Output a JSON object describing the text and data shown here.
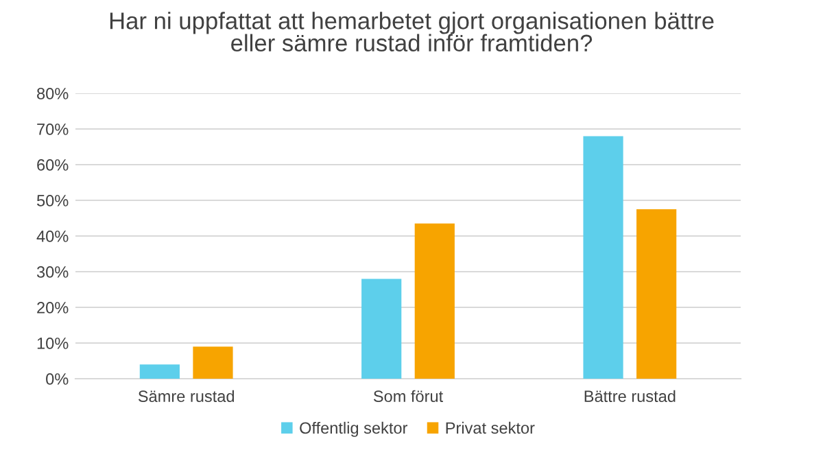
{
  "chart_data": {
    "type": "bar",
    "title": "Har ni uppfattat att hemarbetet gjort organisationen bättre\neller sämre rustad inför framtiden?",
    "categories": [
      "Sämre rustad",
      "Som förut",
      "Bättre rustad"
    ],
    "series": [
      {
        "name": "Offentlig sektor",
        "color": "#5dcfeb",
        "values": [
          4,
          28,
          68
        ]
      },
      {
        "name": "Privat sektor",
        "color": "#f7a400",
        "values": [
          9,
          43.5,
          47.5
        ]
      }
    ],
    "ylim": [
      0,
      80
    ],
    "yticks": [
      {
        "value": 0,
        "label": "0%"
      },
      {
        "value": 10,
        "label": "10%"
      },
      {
        "value": 20,
        "label": "20%"
      },
      {
        "value": 30,
        "label": "30%"
      },
      {
        "value": 40,
        "label": "40%"
      },
      {
        "value": 50,
        "label": "50%"
      },
      {
        "value": 60,
        "label": "60%"
      },
      {
        "value": 70,
        "label": "70%"
      },
      {
        "value": 80,
        "label": "80%"
      }
    ],
    "grid": "y",
    "legend": "bottom"
  }
}
